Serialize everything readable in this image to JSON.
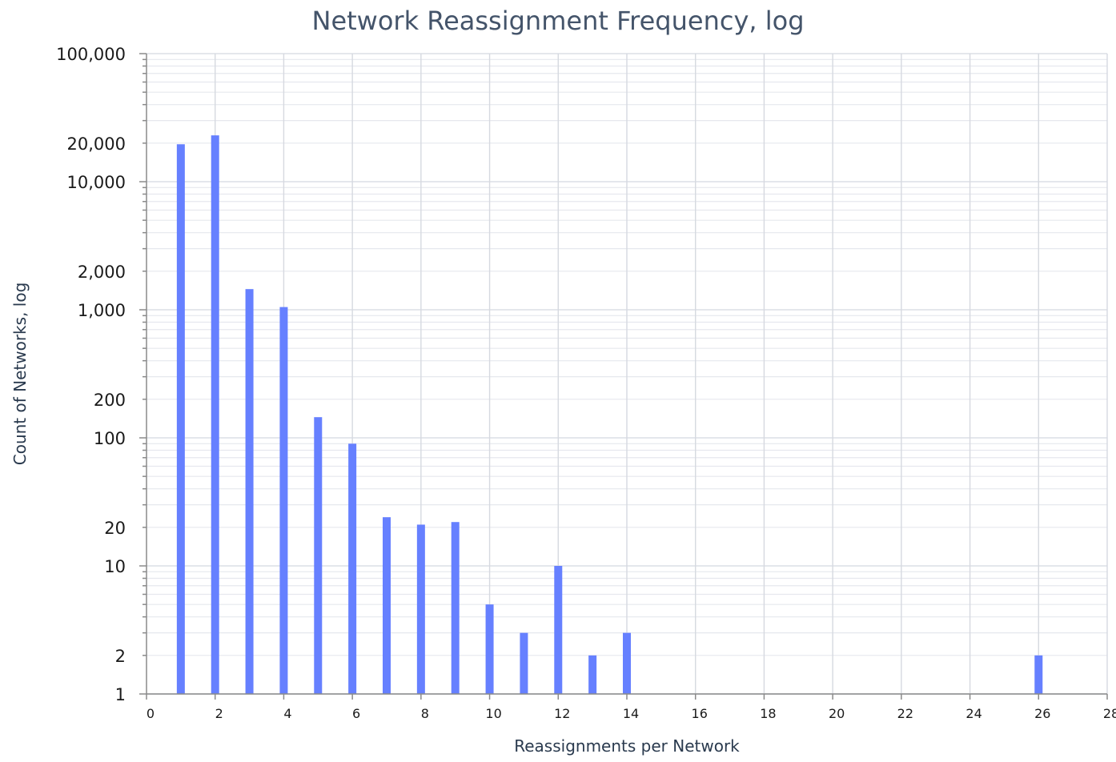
{
  "chart_data": {
    "type": "bar",
    "title": "Network Reassignment Frequency, log",
    "xlabel": "Reassignments per Network",
    "ylabel": "Count of Networks, log",
    "yscale": "log",
    "ylim": [
      1,
      100000
    ],
    "xlim": [
      0,
      28
    ],
    "grid": true,
    "x_ticks": [
      0,
      2,
      4,
      6,
      8,
      10,
      12,
      14,
      16,
      18,
      20,
      22,
      24,
      26,
      28
    ],
    "y_ticks": [
      1,
      2,
      10,
      20,
      100,
      200,
      1000,
      2000,
      10000,
      20000,
      100000
    ],
    "y_tick_labels": [
      "1",
      "2",
      "10",
      "20",
      "100",
      "200",
      "1,000",
      "2,000",
      "10,000",
      "20,000",
      "100,000"
    ],
    "bar_color": "#6680ff",
    "x": [
      1,
      2,
      3,
      4,
      5,
      6,
      7,
      8,
      9,
      10,
      11,
      12,
      13,
      14,
      26
    ],
    "values": [
      19600,
      23000,
      1450,
      1050,
      145,
      90,
      24,
      21,
      22,
      5,
      3,
      10,
      2,
      3,
      2
    ]
  }
}
